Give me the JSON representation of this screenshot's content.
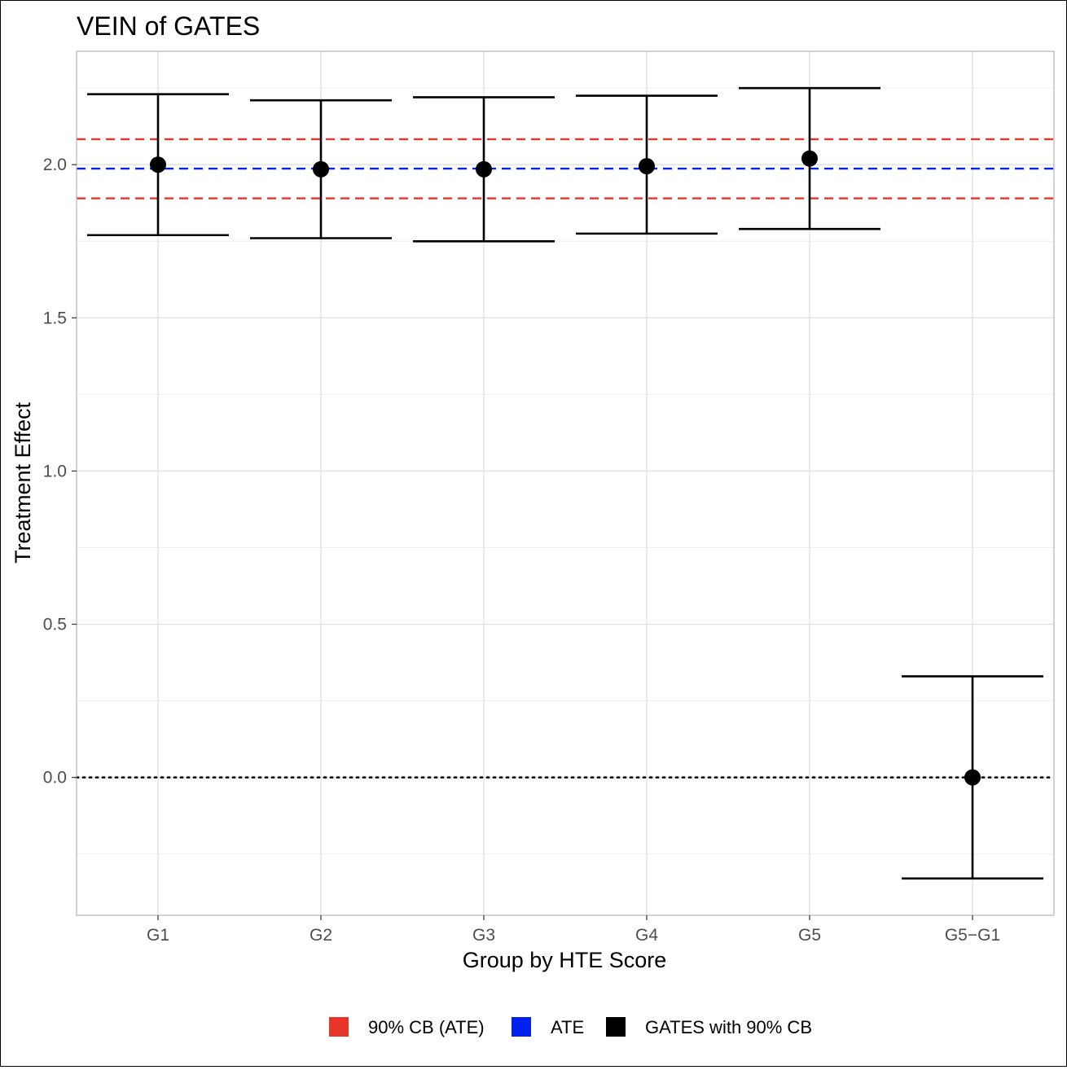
{
  "chart_data": {
    "type": "errorbar",
    "title": "VEIN of GATES",
    "xlabel": "Group by HTE Score",
    "ylabel": "Treatment Effect",
    "categories": [
      "G1",
      "G2",
      "G3",
      "G4",
      "G5",
      "G5−G1"
    ],
    "yticks": [
      "0.0",
      "0.5",
      "1.0",
      "1.5",
      "2.0"
    ],
    "ylim": [
      -0.45,
      2.37
    ],
    "grid": true,
    "series": [
      {
        "name": "GATES with 90% CB",
        "color": "#000000",
        "points": [
          {
            "x": "G1",
            "estimate": 2.0,
            "lower": 1.77,
            "upper": 2.23
          },
          {
            "x": "G2",
            "estimate": 1.985,
            "lower": 1.76,
            "upper": 2.21
          },
          {
            "x": "G3",
            "estimate": 1.985,
            "lower": 1.75,
            "upper": 2.22
          },
          {
            "x": "G4",
            "estimate": 1.995,
            "lower": 1.775,
            "upper": 2.225
          },
          {
            "x": "G5",
            "estimate": 2.02,
            "lower": 1.79,
            "upper": 2.25
          },
          {
            "x": "G5−G1",
            "estimate": 0.0,
            "lower": -0.33,
            "upper": 0.33
          }
        ]
      }
    ],
    "reference_lines": [
      {
        "name": "ATE",
        "value": 1.987,
        "color": "#0022ee",
        "style": "dashed"
      },
      {
        "name": "90% CB (ATE)",
        "value": 2.083,
        "color": "#e8352a",
        "style": "dashed"
      },
      {
        "name": "90% CB (ATE)",
        "value": 1.89,
        "color": "#e8352a",
        "style": "dashed"
      },
      {
        "name": "zero",
        "value": 0.0,
        "color": "#000000",
        "style": "dotted"
      }
    ],
    "legend": {
      "position": "bottom",
      "items": [
        {
          "label": "90% CB (ATE)",
          "color": "#e8352a"
        },
        {
          "label": "ATE",
          "color": "#0022ee"
        },
        {
          "label": "GATES with 90% CB",
          "color": "#000000"
        }
      ]
    }
  }
}
